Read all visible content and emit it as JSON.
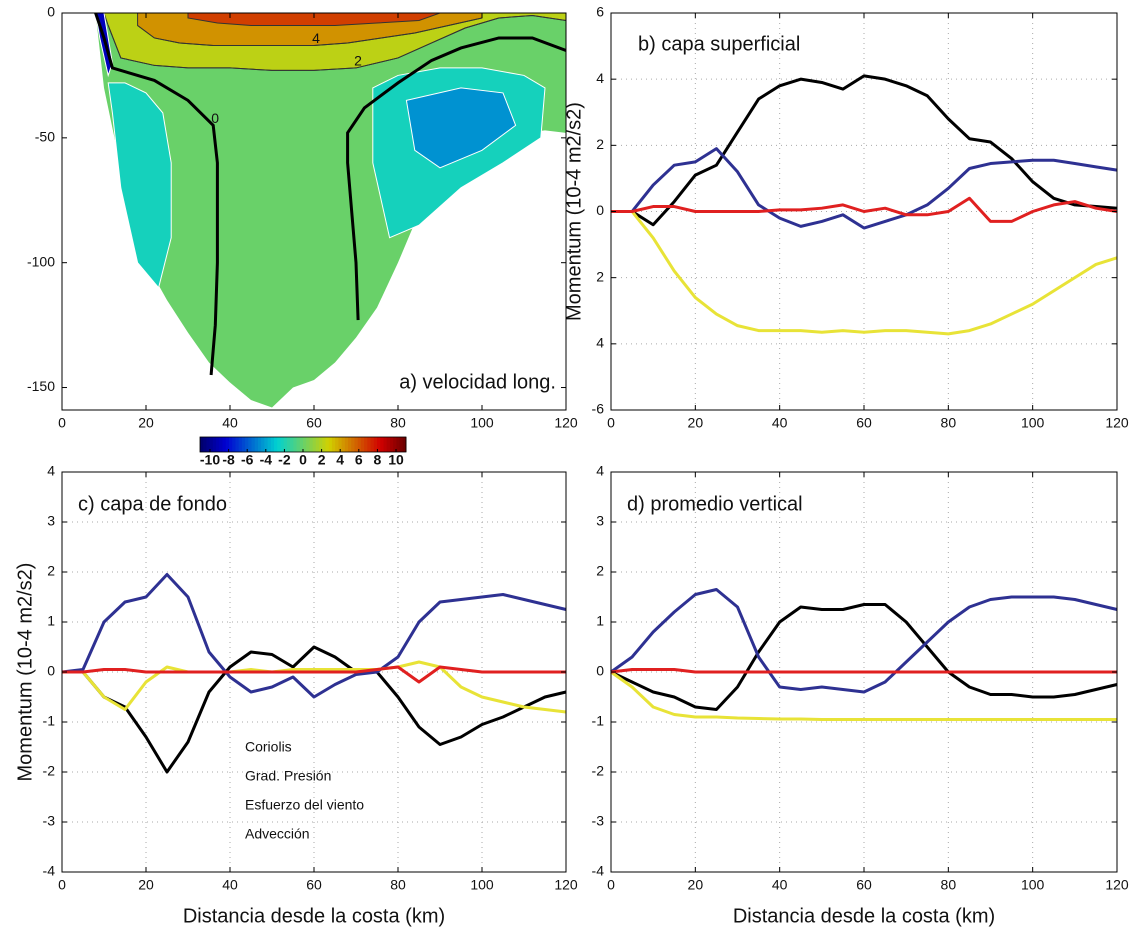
{
  "chart_data": [
    {
      "type": "contour",
      "title": "a) velocidad long.",
      "colormap": "jet",
      "clim": [
        -10,
        10
      ],
      "colorbar_ticks": [
        -10,
        -8,
        -6,
        -4,
        -2,
        0,
        2,
        4,
        6,
        8,
        10
      ],
      "xlim": [
        0,
        120
      ],
      "ylim": [
        -159,
        0
      ],
      "xticks": [
        0,
        20,
        40,
        60,
        80,
        100,
        120
      ],
      "yticks": [
        -150,
        -100,
        -50,
        0
      ],
      "grid": false,
      "regions": [
        {
          "level": 0,
          "x": [
            8,
            10,
            15,
            20,
            25,
            30,
            35,
            40,
            45,
            50,
            55,
            60,
            65,
            70,
            75,
            80,
            85,
            90,
            95,
            100,
            105,
            110,
            115,
            120,
            120
          ],
          "y": [
            0,
            -30,
            -70,
            -100,
            -115,
            -128,
            -140,
            -148,
            -155,
            -158,
            -150,
            -147,
            -140,
            -130,
            -118,
            -100,
            -80,
            -65,
            -55,
            -52,
            -50,
            -48,
            -47,
            -48,
            0
          ]
        },
        {
          "level": 2,
          "x": [
            10,
            120,
            120,
            112,
            104,
            96,
            88,
            80,
            70,
            60,
            50,
            40,
            30,
            22,
            14,
            11
          ],
          "y": [
            0,
            0,
            -3,
            -1,
            -2,
            -6,
            -12,
            -18,
            -22,
            -23,
            -23,
            -22,
            -22,
            -21,
            -18,
            -5
          ]
        },
        {
          "level": 4,
          "x": [
            18,
            100,
            100,
            92,
            84,
            76,
            68,
            60,
            52,
            44,
            36,
            28,
            22,
            18
          ],
          "y": [
            0,
            0,
            -2,
            -5,
            -8,
            -10,
            -12,
            -13,
            -13,
            -13,
            -13,
            -12,
            -10,
            -5
          ]
        },
        {
          "level": 6,
          "x": [
            30,
            90,
            85,
            75,
            65,
            55,
            45,
            37,
            30
          ],
          "y": [
            0,
            0,
            -3,
            -4,
            -5,
            -5,
            -5,
            -4,
            -2
          ]
        },
        {
          "level": -2,
          "x": [
            11,
            15,
            20,
            24,
            26,
            26,
            23,
            18,
            14,
            12
          ],
          "y": [
            -28,
            -28,
            -32,
            -40,
            -60,
            -90,
            -110,
            -100,
            -70,
            -40
          ]
        },
        {
          "level": -2,
          "x": [
            74,
            80,
            90,
            100,
            110,
            115,
            114,
            105,
            95,
            85,
            78,
            74
          ],
          "y": [
            -30,
            -25,
            -22,
            -22,
            -25,
            -30,
            -50,
            -60,
            -70,
            -85,
            -90,
            -60
          ]
        },
        {
          "level": -4,
          "x": [
            82,
            95,
            105,
            108,
            100,
            90,
            84
          ],
          "y": [
            -35,
            -30,
            -32,
            -45,
            -55,
            -62,
            -55
          ]
        },
        {
          "level": -8,
          "x": [
            8,
            10,
            12,
            11,
            9
          ],
          "y": [
            0,
            0,
            -20,
            -25,
            -10
          ]
        }
      ],
      "contours": [
        {
          "level": 4,
          "color": "#333333",
          "linewidth": 1,
          "labeled": true,
          "x": [
            18,
            22,
            28,
            36,
            44,
            52,
            60,
            68,
            76,
            84,
            92,
            100
          ],
          "y": [
            -5,
            -10,
            -12,
            -13,
            -13,
            -13,
            -13,
            -12,
            -10,
            -8,
            -5,
            -2
          ]
        },
        {
          "level": 2,
          "color": "#333333",
          "linewidth": 1,
          "labeled": true,
          "x": [
            11,
            14,
            22,
            30,
            40,
            50,
            60,
            70,
            80,
            88,
            96,
            104,
            112,
            120
          ],
          "y": [
            -5,
            -18,
            -21,
            -22,
            -22,
            -23,
            -23,
            -22,
            -18,
            -12,
            -6,
            -2,
            -1,
            -3
          ]
        },
        {
          "level": 0,
          "color": "#000000",
          "linewidth": 3,
          "labeled": true,
          "x": [
            8,
            10,
            12,
            16,
            22,
            30,
            36,
            37,
            37,
            37,
            36.5,
            35.5
          ],
          "y": [
            0,
            -10,
            -22,
            -24,
            -27,
            -35,
            -45,
            -60,
            -80,
            -100,
            -125,
            -145
          ]
        },
        {
          "level": 0,
          "color": "#000000",
          "linewidth": 3,
          "labeled": false,
          "x": [
            120,
            112,
            104,
            95,
            88,
            80,
            72,
            68,
            68,
            69,
            70,
            70.5
          ],
          "y": [
            -15,
            -10,
            -10,
            -14,
            -19,
            -28,
            -38,
            -48,
            -60,
            -80,
            -100,
            -123
          ]
        }
      ]
    },
    {
      "type": "line",
      "title": "b) capa superficial",
      "ylabel": "Momentum (10-4 m2/s2)",
      "xlim": [
        0,
        120
      ],
      "ylim": [
        -6,
        6
      ],
      "xticks": [
        0,
        20,
        40,
        60,
        80,
        100,
        120
      ],
      "yticks": [
        -6,
        {
          "value": -4,
          "label": "4"
        },
        {
          "value": -2,
          "label": "2"
        },
        0,
        2,
        4,
        6
      ],
      "grid": true,
      "x": [
        0,
        5,
        10,
        15,
        20,
        25,
        30,
        35,
        40,
        45,
        50,
        55,
        60,
        65,
        70,
        75,
        80,
        85,
        90,
        95,
        100,
        105,
        110,
        115,
        120
      ],
      "series": [
        {
          "color": "#000000",
          "values": [
            0,
            0,
            -0.4,
            0.3,
            1.1,
            1.4,
            2.4,
            3.4,
            3.8,
            4.0,
            3.9,
            3.7,
            4.1,
            4.0,
            3.8,
            3.5,
            2.8,
            2.2,
            2.1,
            1.6,
            0.9,
            0.4,
            0.2,
            0.15,
            0.1
          ]
        },
        {
          "color": "#2e3192",
          "values": [
            0,
            0,
            0.8,
            1.4,
            1.5,
            1.9,
            1.2,
            0.2,
            -0.2,
            -0.45,
            -0.3,
            -0.1,
            -0.5,
            -0.3,
            -0.1,
            0.2,
            0.7,
            1.3,
            1.45,
            1.5,
            1.55,
            1.55,
            1.45,
            1.35,
            1.25
          ]
        },
        {
          "color": "#e8e337",
          "values": [
            0,
            0,
            -0.8,
            -1.8,
            -2.6,
            -3.1,
            -3.45,
            -3.6,
            -3.6,
            -3.6,
            -3.65,
            -3.6,
            -3.65,
            -3.6,
            -3.6,
            -3.65,
            -3.7,
            -3.6,
            -3.4,
            -3.1,
            -2.8,
            -2.4,
            -2.0,
            -1.6,
            -1.4
          ]
        },
        {
          "color": "#e02020",
          "values": [
            0,
            0,
            0.15,
            0.15,
            0,
            0,
            0,
            0,
            0.05,
            0.05,
            0.1,
            0.2,
            0,
            0.1,
            -0.1,
            -0.1,
            0,
            0.4,
            -0.3,
            -0.3,
            0,
            0.2,
            0.3,
            0.1,
            0
          ]
        }
      ]
    },
    {
      "type": "line",
      "title": "c) capa de fondo",
      "ylabel": "Momentum (10-4 m2/s2)",
      "xlabel": "Distancia desde la costa (km)",
      "xlim": [
        0,
        120
      ],
      "ylim": [
        -4,
        4
      ],
      "xticks": [
        0,
        20,
        40,
        60,
        80,
        100,
        120
      ],
      "yticks": [
        -4,
        -3,
        -2,
        -1,
        0,
        1,
        2,
        3,
        4
      ],
      "grid": true,
      "x": [
        0,
        5,
        10,
        15,
        20,
        25,
        30,
        35,
        40,
        45,
        50,
        55,
        60,
        65,
        70,
        75,
        80,
        85,
        90,
        95,
        100,
        105,
        110,
        115,
        120
      ],
      "series": [
        {
          "name": "Coriolis",
          "color": "#000000",
          "values": [
            0,
            0,
            -0.5,
            -0.7,
            -1.3,
            -2.0,
            -1.4,
            -0.4,
            0.1,
            0.4,
            0.35,
            0.1,
            0.5,
            0.3,
            0,
            0,
            -0.5,
            -1.1,
            -1.45,
            -1.3,
            -1.05,
            -0.9,
            -0.7,
            -0.5,
            -0.4
          ]
        },
        {
          "name": "Grad. Presión",
          "color": "#2e3192",
          "values": [
            0,
            0.05,
            1.0,
            1.4,
            1.5,
            1.95,
            1.5,
            0.4,
            -0.1,
            -0.4,
            -0.3,
            -0.1,
            -0.5,
            -0.25,
            -0.05,
            0,
            0.3,
            1.0,
            1.4,
            1.45,
            1.5,
            1.55,
            1.45,
            1.35,
            1.25
          ]
        },
        {
          "name": "Esfuerzo del viento",
          "color": "#e8e337",
          "values": [
            0,
            0,
            -0.5,
            -0.75,
            -0.2,
            0.1,
            0,
            0,
            0,
            0.05,
            0,
            0.05,
            0.05,
            0.05,
            0.05,
            0.05,
            0.1,
            0.2,
            0.1,
            -0.3,
            -0.5,
            -0.6,
            -0.7,
            -0.75,
            -0.8
          ]
        },
        {
          "name": "Advección",
          "color": "#e02020",
          "values": [
            0,
            0,
            0.05,
            0.05,
            0,
            0,
            0,
            0,
            0,
            0,
            0,
            0,
            0,
            0,
            0,
            0.05,
            0.1,
            -0.2,
            0.1,
            0.05,
            0,
            0,
            0,
            0,
            0
          ]
        }
      ]
    },
    {
      "type": "line",
      "title": "d) promedio vertical",
      "xlabel": "Distancia desde la costa (km)",
      "xlim": [
        0,
        120
      ],
      "ylim": [
        -4,
        4
      ],
      "xticks": [
        0,
        20,
        40,
        60,
        80,
        100,
        120
      ],
      "yticks": [
        -4,
        -3,
        -2,
        -1,
        0,
        1,
        2,
        3,
        4
      ],
      "grid": true,
      "x": [
        0,
        5,
        10,
        15,
        20,
        25,
        30,
        35,
        40,
        45,
        50,
        55,
        60,
        65,
        70,
        75,
        80,
        85,
        90,
        95,
        100,
        105,
        110,
        115,
        120
      ],
      "series": [
        {
          "color": "#000000",
          "values": [
            0,
            -0.2,
            -0.4,
            -0.5,
            -0.7,
            -0.75,
            -0.3,
            0.4,
            1.0,
            1.3,
            1.25,
            1.25,
            1.35,
            1.35,
            1.0,
            0.5,
            0,
            -0.3,
            -0.45,
            -0.45,
            -0.5,
            -0.5,
            -0.45,
            -0.35,
            -0.25
          ]
        },
        {
          "color": "#2e3192",
          "values": [
            0,
            0.3,
            0.8,
            1.2,
            1.55,
            1.65,
            1.3,
            0.3,
            -0.3,
            -0.35,
            -0.3,
            -0.35,
            -0.4,
            -0.2,
            0.2,
            0.6,
            1.0,
            1.3,
            1.45,
            1.5,
            1.5,
            1.5,
            1.45,
            1.35,
            1.25
          ]
        },
        {
          "color": "#e8e337",
          "values": [
            0,
            -0.3,
            -0.7,
            -0.85,
            -0.9,
            -0.9,
            -0.92,
            -0.93,
            -0.94,
            -0.94,
            -0.95,
            -0.95,
            -0.95,
            -0.95,
            -0.95,
            -0.95,
            -0.95,
            -0.95,
            -0.95,
            -0.95,
            -0.95,
            -0.95,
            -0.95,
            -0.95,
            -0.95
          ]
        },
        {
          "color": "#e02020",
          "values": [
            0,
            0.05,
            0.05,
            0.05,
            0,
            0,
            0,
            0,
            0,
            0,
            0,
            0,
            0,
            0,
            0,
            0,
            0,
            0,
            0,
            0,
            0,
            0,
            0,
            0,
            0
          ]
        }
      ]
    }
  ]
}
